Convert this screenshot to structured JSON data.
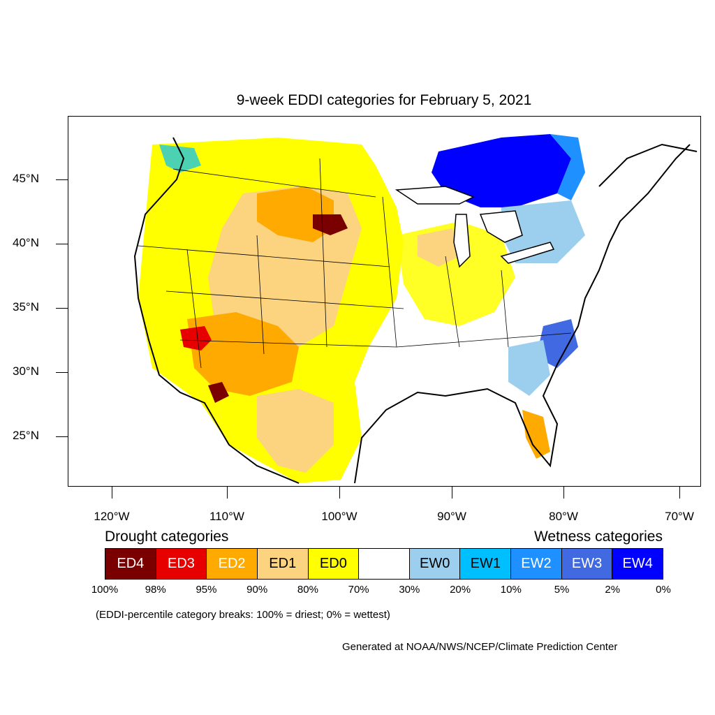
{
  "title": "9-week EDDI categories for February 5, 2021",
  "latitude_labels": [
    "45°N",
    "40°N",
    "35°N",
    "30°N",
    "25°N"
  ],
  "longitude_labels": [
    "120°W",
    "110°W",
    "100°W",
    "90°W",
    "80°W",
    "70°W"
  ],
  "legend": {
    "drought_title": "Drought categories",
    "wetness_title": "Wetness categories",
    "categories": [
      {
        "label": "ED4",
        "color": "#7a0000",
        "text_color": "#ffffff"
      },
      {
        "label": "ED3",
        "color": "#e60000",
        "text_color": "#ffffff"
      },
      {
        "label": "ED2",
        "color": "#ffaa00",
        "text_color": "#ffffff"
      },
      {
        "label": "ED1",
        "color": "#fcd37f",
        "text_color": "#000000"
      },
      {
        "label": "ED0",
        "color": "#ffff00",
        "text_color": "#000000"
      },
      {
        "label": "",
        "color": "#ffffff",
        "text_color": "#000000"
      },
      {
        "label": "EW0",
        "color": "#9ccfee",
        "text_color": "#000000"
      },
      {
        "label": "EW1",
        "color": "#00bfff",
        "text_color": "#000000"
      },
      {
        "label": "EW2",
        "color": "#1e90ff",
        "text_color": "#ffffff"
      },
      {
        "label": "EW3",
        "color": "#4169e1",
        "text_color": "#ffffff"
      },
      {
        "label": "EW4",
        "color": "#0000ff",
        "text_color": "#ffffff"
      }
    ],
    "percentiles": [
      "100%",
      "98%",
      "95%",
      "90%",
      "80%",
      "70%",
      "30%",
      "20%",
      "10%",
      "5%",
      "2%",
      "0%"
    ]
  },
  "breaks_note": "(EDDI-percentile category breaks: 100% = driest; 0% = wettest)",
  "credit": "Generated at NOAA/NWS/NCEP/Climate Prediction Center"
}
